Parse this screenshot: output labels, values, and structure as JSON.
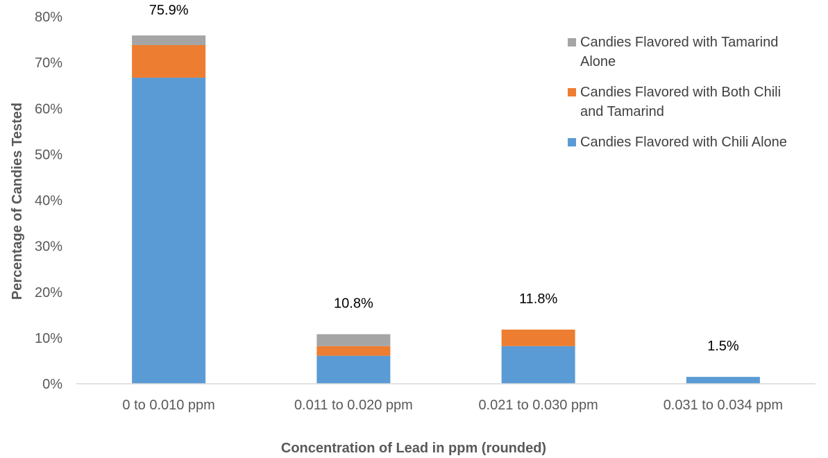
{
  "chart_data": {
    "type": "bar",
    "stacked": true,
    "categories": [
      "0 to 0.010 ppm",
      "0.011 to 0.020 ppm",
      "0.021 to 0.030 ppm",
      "0.031 to 0.034 ppm"
    ],
    "series": [
      {
        "name": "Candies Flavored with Chili Alone",
        "values": [
          66.7,
          6.1,
          8.2,
          1.5
        ],
        "color": "#5B9BD5"
      },
      {
        "name": "Candies Flavored with Both Chili and Tamarind",
        "values": [
          7.1,
          2.1,
          3.6,
          0.0
        ],
        "color": "#ED7D31"
      },
      {
        "name": "Candies Flavored with Tamarind Alone",
        "values": [
          2.1,
          2.6,
          0.0,
          0.0
        ],
        "color": "#A5A5A5"
      }
    ],
    "totals": [
      "75.9%",
      "10.8%",
      "11.8%",
      "1.5%"
    ],
    "xlabel": "Concentration of Lead in ppm (rounded)",
    "ylabel": "Percentage of Candies Tested",
    "ylim": [
      0,
      80
    ],
    "yticks": [
      0,
      10,
      20,
      30,
      40,
      50,
      60,
      70,
      80
    ],
    "ytick_labels": [
      "0%",
      "10%",
      "20%",
      "30%",
      "40%",
      "50%",
      "60%",
      "70%",
      "80%"
    ],
    "legend_placement": "top-right",
    "legend_order": [
      2,
      1,
      0
    ],
    "legend_lines": [
      [
        "Candies Flavored with Chili Alone"
      ],
      [
        "Candies Flavored with Both Chili",
        "and Tamarind"
      ],
      [
        "Candies Flavored with Tamarind",
        "Alone"
      ]
    ],
    "grid": false
  }
}
